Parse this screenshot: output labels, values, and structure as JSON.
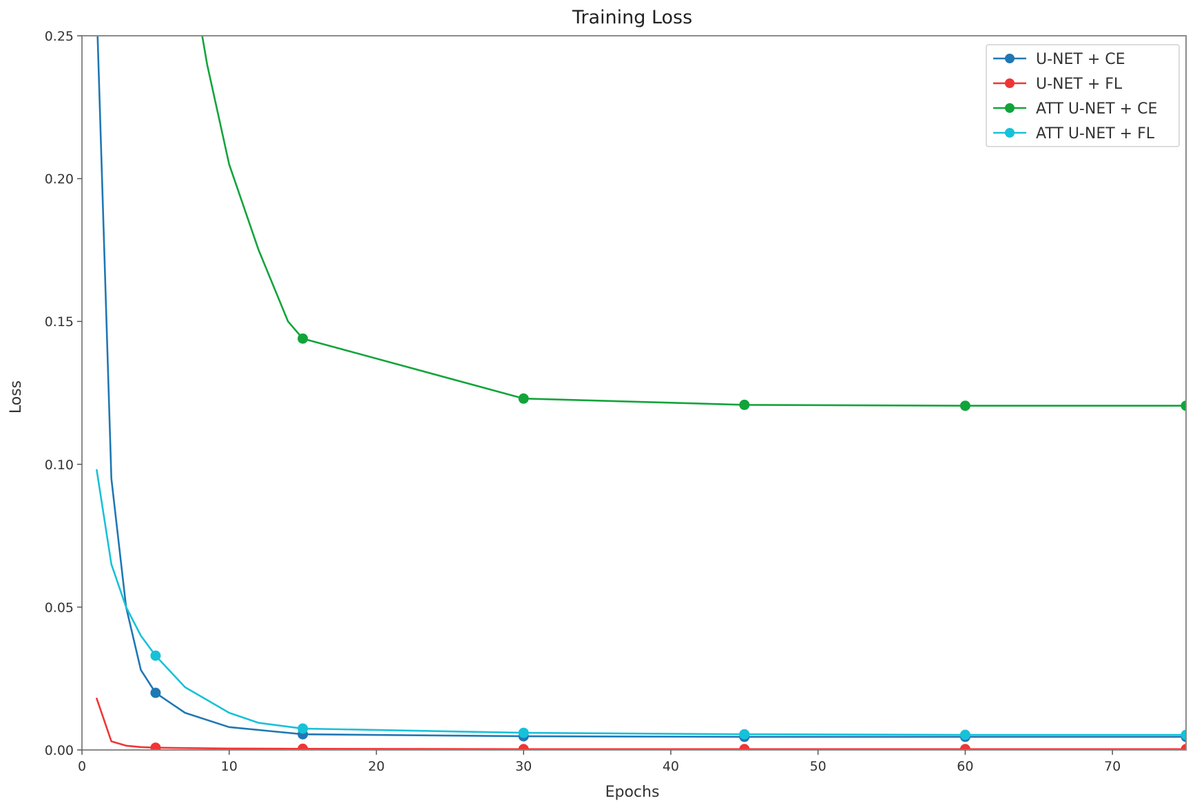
{
  "chart_data": {
    "type": "line",
    "title": "Training Loss",
    "xlabel": "Epochs",
    "ylabel": "Loss",
    "xlim": [
      0,
      75
    ],
    "ylim": [
      0,
      0.25
    ],
    "x_ticks": [
      0,
      10,
      20,
      30,
      40,
      50,
      60,
      70
    ],
    "y_ticks": [
      0.0,
      0.05,
      0.1,
      0.15,
      0.2,
      0.25
    ],
    "y_tick_labels": [
      "0.00",
      "0.05",
      "0.10",
      "0.15",
      "0.20",
      "0.25"
    ],
    "grid": false,
    "legend_position": "top-right",
    "series": [
      {
        "name": "U-NET + CE",
        "color": "#1f77b4",
        "x": [
          1,
          2,
          3,
          4,
          5,
          7,
          10,
          15,
          30,
          45,
          60,
          75
        ],
        "y": [
          0.26,
          0.095,
          0.05,
          0.028,
          0.02,
          0.013,
          0.008,
          0.0055,
          0.0048,
          0.0046,
          0.0046,
          0.0046
        ],
        "marker_x": [
          5,
          15,
          30,
          45,
          60,
          75
        ],
        "marker_y": [
          0.02,
          0.0055,
          0.0048,
          0.0046,
          0.0046,
          0.0046
        ]
      },
      {
        "name": "U-NET + FL",
        "color": "#f03535",
        "x": [
          1,
          2,
          3,
          4,
          5,
          10,
          15,
          30,
          45,
          60,
          75
        ],
        "y": [
          0.018,
          0.003,
          0.0015,
          0.001,
          0.0008,
          0.0005,
          0.0004,
          0.0003,
          0.0003,
          0.0003,
          0.0003
        ],
        "marker_x": [
          5,
          15,
          30,
          45,
          60,
          75
        ],
        "marker_y": [
          0.0008,
          0.0004,
          0.0003,
          0.0003,
          0.0003,
          0.0003
        ]
      },
      {
        "name": "ATT U-NET + CE",
        "color": "#11a43a",
        "x": [
          7.5,
          8.5,
          10,
          12,
          14,
          15,
          30,
          45,
          60,
          75
        ],
        "y": [
          0.27,
          0.24,
          0.205,
          0.175,
          0.15,
          0.144,
          0.123,
          0.1208,
          0.1205,
          0.1205
        ],
        "marker_x": [
          15,
          30,
          45,
          60,
          75
        ],
        "marker_y": [
          0.144,
          0.123,
          0.1208,
          0.1205,
          0.1205
        ]
      },
      {
        "name": "ATT U-NET + FL",
        "color": "#17c1d8",
        "x": [
          1,
          2,
          3,
          4,
          5,
          7,
          10,
          12,
          15,
          30,
          45,
          60,
          75
        ],
        "y": [
          0.098,
          0.065,
          0.05,
          0.04,
          0.033,
          0.022,
          0.013,
          0.0095,
          0.0075,
          0.006,
          0.0055,
          0.0053,
          0.0053
        ],
        "marker_x": [
          5,
          15,
          30,
          45,
          60,
          75
        ],
        "marker_y": [
          0.033,
          0.0075,
          0.006,
          0.0055,
          0.0053,
          0.0053
        ]
      }
    ]
  }
}
